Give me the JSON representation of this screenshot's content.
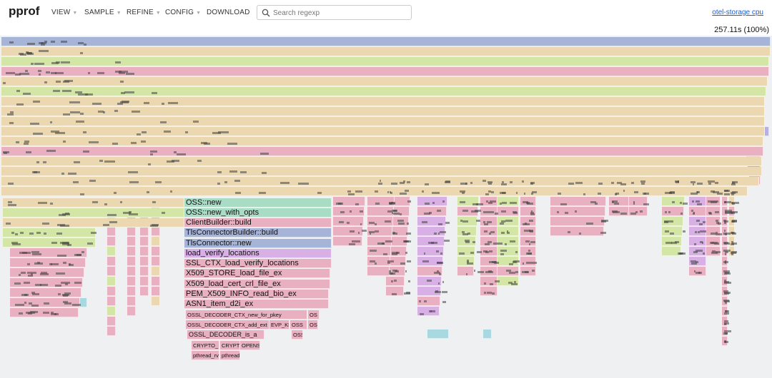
{
  "app": {
    "name": "pprof"
  },
  "menu": [
    {
      "label": "VIEW",
      "icon": "caret-down-icon"
    },
    {
      "label": "SAMPLE",
      "icon": "caret-down-icon"
    },
    {
      "label": "REFINE",
      "icon": "caret-down-icon"
    },
    {
      "label": "CONFIG",
      "icon": "caret-down-icon"
    },
    {
      "label": "DOWNLOAD"
    }
  ],
  "search": {
    "placeholder": "Search regexp",
    "icon": "search-icon"
  },
  "profile_link": "otel-storage cpu",
  "total": "257.11s (100%)",
  "colors": {
    "blue": "#a6b4d8",
    "purple": "#b8b0e0",
    "green": "#d4e6a6",
    "teal": "#a8dcc4",
    "tan": "#ecd8b0",
    "pink": "#e8b0c0",
    "violet": "#d8b0e6",
    "cyan": "#a8d8e0"
  },
  "stack": [
    {
      "label": "OSS::new",
      "color": "teal"
    },
    {
      "label": "OSS::new_with_opts",
      "color": "teal"
    },
    {
      "label": "ClientBuilder::build",
      "color": "pink"
    },
    {
      "label": "TlsConnectorBuilder::build",
      "color": "blue"
    },
    {
      "label": "TlsConnector::new",
      "color": "blue"
    },
    {
      "label": "load_verify_locations",
      "color": "violet"
    },
    {
      "label": "SSL_CTX_load_verify_locations",
      "color": "pink"
    },
    {
      "label": "X509_STORE_load_file_ex",
      "color": "pink"
    },
    {
      "label": "X509_load_cert_crl_file_ex",
      "color": "pink"
    },
    {
      "label": "PEM_X509_INFO_read_bio_ex",
      "color": "pink"
    },
    {
      "label": "ASN1_item_d2i_ex",
      "color": "pink"
    }
  ],
  "small_frames": [
    {
      "label": "OSSL_DECODER_CTX_new_for_pkey"
    },
    {
      "label": "OS"
    },
    {
      "label": "OSSL_DECODER_CTX_add_ext"
    },
    {
      "label": "EVP_KE"
    },
    {
      "label": "OSS"
    },
    {
      "label": "OS"
    },
    {
      "label": "OSSL_DECODER_is_a"
    },
    {
      "label": "OSS"
    },
    {
      "label": "CRYPTO_"
    },
    {
      "label": "CRYPT"
    },
    {
      "label": "OPENS"
    },
    {
      "label": "pthread_rv"
    },
    {
      "label": "pthread"
    }
  ]
}
